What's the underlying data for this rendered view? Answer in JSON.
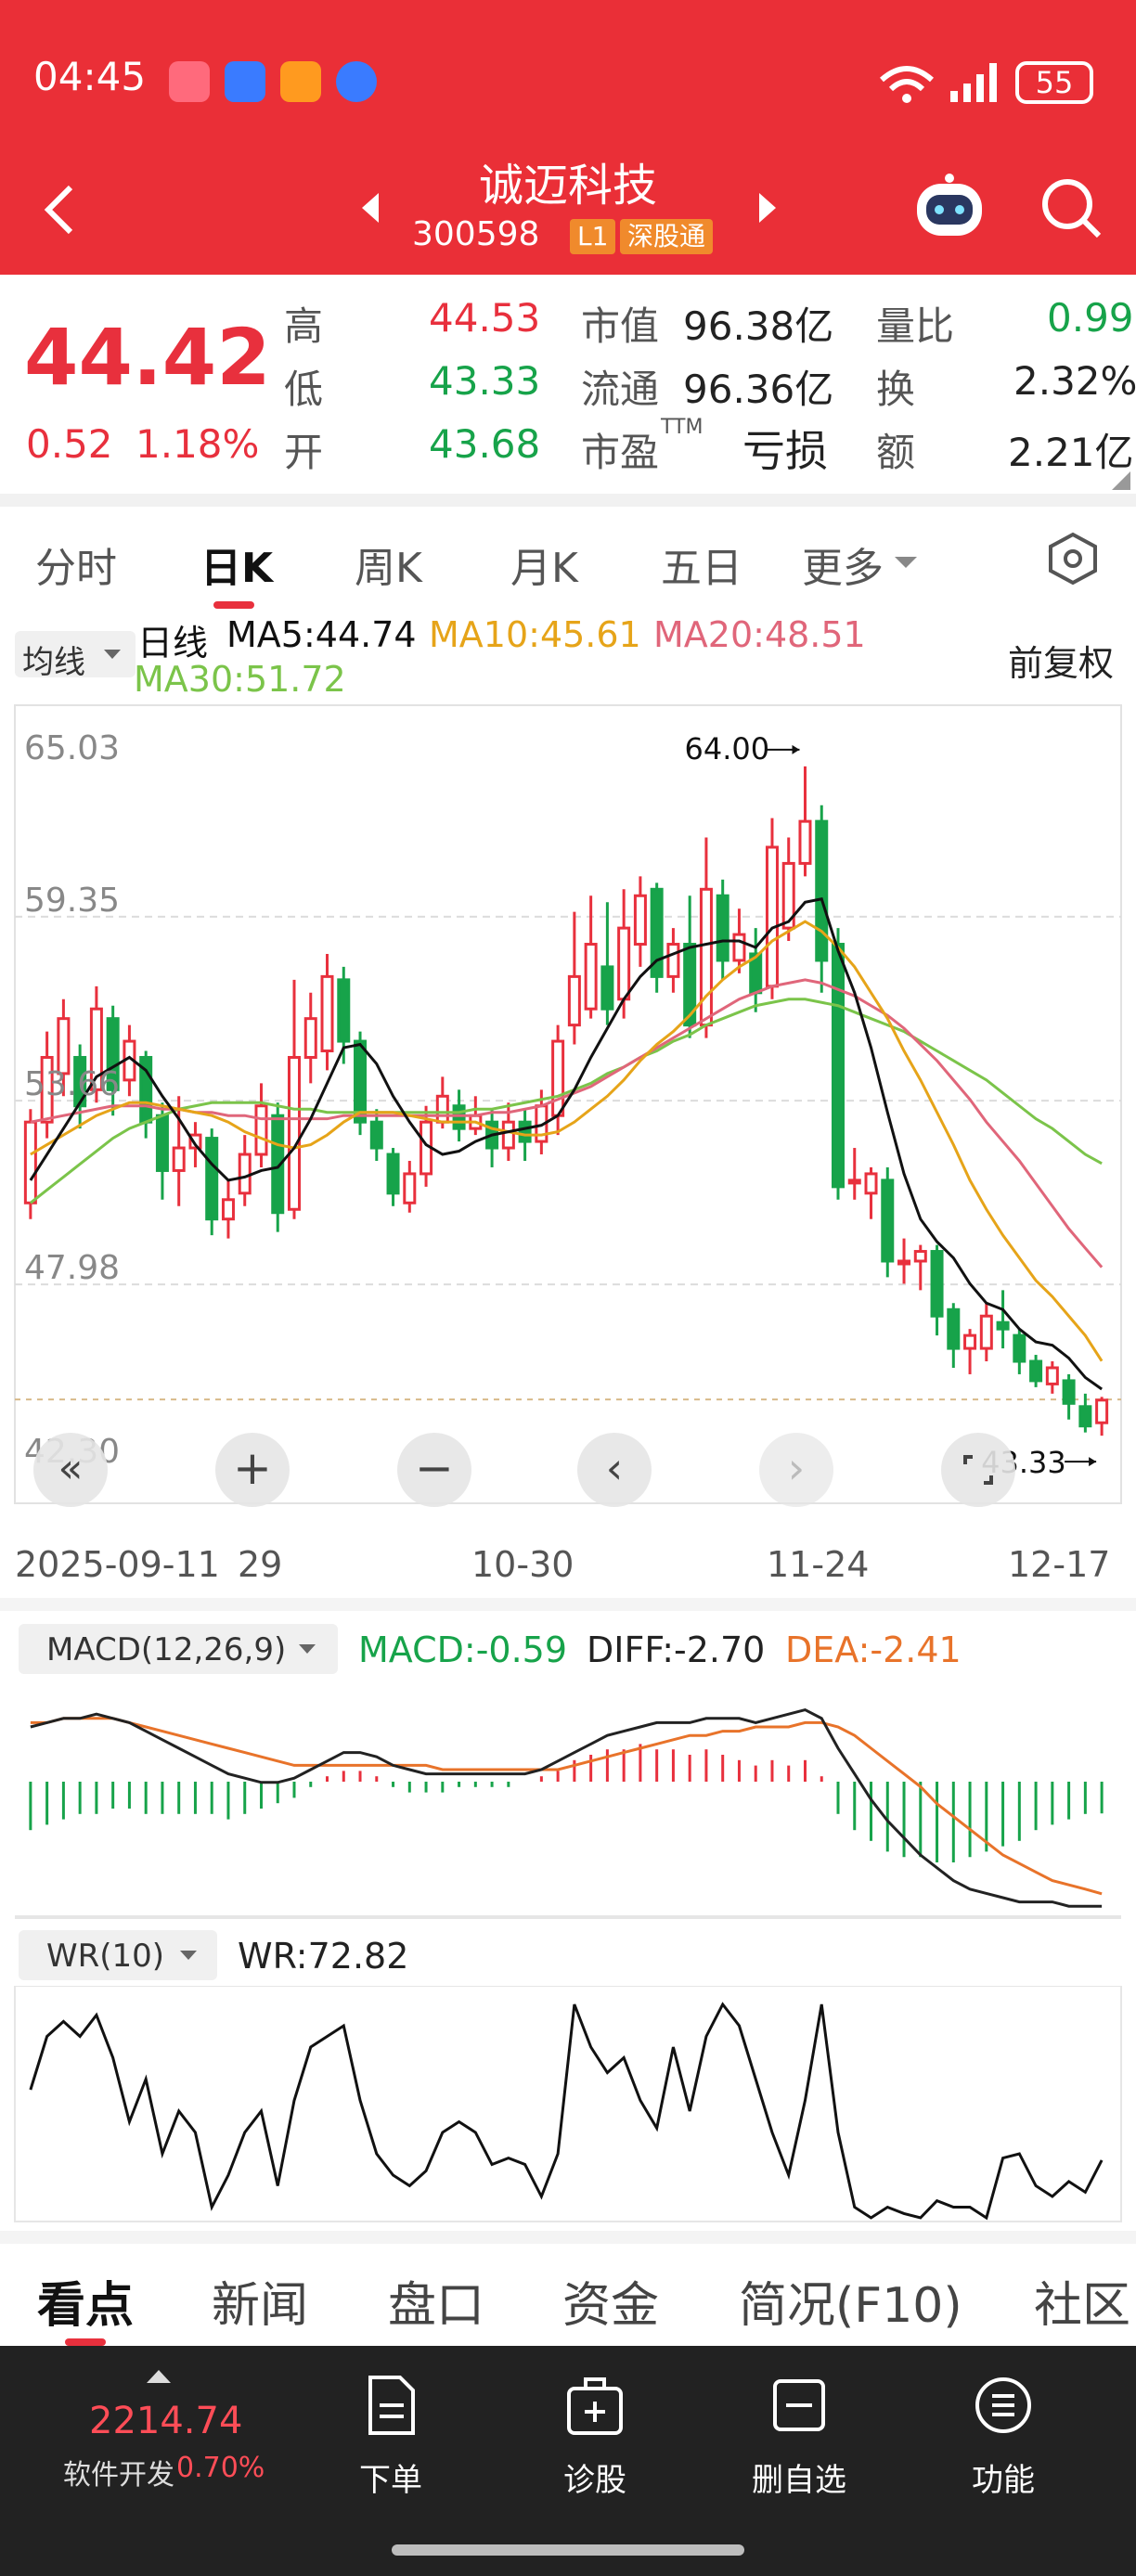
{
  "status_bar": {
    "time": "04:45",
    "battery": "55"
  },
  "header": {
    "stock_name": "诚迈科技",
    "stock_code": "300598",
    "tag_l1": "L1",
    "tag_connect": "深股通"
  },
  "quote": {
    "price": "44.42",
    "change": "0.52",
    "change_pct": "1.18%",
    "high_label": "高",
    "high": "44.53",
    "low_label": "低",
    "low": "43.33",
    "open_label": "开",
    "open": "43.68",
    "mktcap_label": "市值",
    "mktcap": "96.38亿",
    "float_label": "流通",
    "float": "96.36亿",
    "pe_label": "市盈",
    "pe_sup": "TTM",
    "pe": "亏损",
    "vol_ratio_label": "量比",
    "vol_ratio": "0.99",
    "turnover_label": "换",
    "turnover": "2.32%",
    "amount_label": "额",
    "amount": "2.21亿"
  },
  "tabs": [
    "分时",
    "日K",
    "周K",
    "月K",
    "五日",
    "更多"
  ],
  "legend": {
    "selector": "均线",
    "period": "日线",
    "ma5": "MA5:44.74",
    "ma10": "MA10:45.61",
    "ma20": "MA20:48.51",
    "ma30": "MA30:51.72",
    "adjust": "前复权"
  },
  "colors": {
    "up": "#e8303d",
    "down": "#17a34a",
    "ma5": "#111111",
    "ma10": "#e6a419",
    "ma20": "#e0667a",
    "ma30": "#7bc44a"
  },
  "chart_data": {
    "type": "candlestick",
    "y_ticks": [
      "65.03",
      "59.35",
      "53.66",
      "47.98",
      "42.30"
    ],
    "ylim": [
      42.3,
      65.03
    ],
    "x_ticks": [
      "2025-09-11",
      "29",
      "10-30",
      "11-24",
      "12-17"
    ],
    "max_label": "64.00",
    "min_label": "43.33",
    "candles": [
      [
        50.5,
        53.0,
        50.0,
        53.4
      ],
      [
        53.0,
        55.0,
        52.5,
        55.8
      ],
      [
        54.5,
        56.2,
        53.8,
        56.8
      ],
      [
        55.0,
        53.5,
        52.8,
        55.4
      ],
      [
        54.0,
        56.5,
        53.6,
        57.2
      ],
      [
        56.2,
        54.0,
        53.2,
        56.6
      ],
      [
        54.3,
        55.5,
        53.8,
        56.0
      ],
      [
        55.0,
        53.0,
        52.5,
        55.2
      ],
      [
        53.2,
        51.5,
        50.6,
        53.6
      ],
      [
        51.5,
        52.2,
        50.4,
        53.8
      ],
      [
        52.2,
        52.6,
        51.6,
        53.0
      ],
      [
        52.5,
        50.0,
        49.5,
        52.8
      ],
      [
        50.0,
        50.6,
        49.4,
        51.2
      ],
      [
        50.8,
        52.0,
        50.4,
        52.6
      ],
      [
        52.0,
        53.5,
        51.6,
        54.2
      ],
      [
        53.2,
        50.2,
        49.6,
        53.6
      ],
      [
        50.3,
        55.0,
        50.0,
        57.4
      ],
      [
        55.0,
        56.2,
        54.2,
        57.0
      ],
      [
        55.2,
        57.5,
        54.6,
        58.2
      ],
      [
        57.4,
        55.5,
        54.8,
        57.8
      ],
      [
        55.5,
        53.0,
        52.6,
        55.8
      ],
      [
        53.0,
        52.2,
        51.8,
        53.4
      ],
      [
        52.0,
        50.8,
        50.4,
        52.2
      ],
      [
        50.5,
        51.4,
        50.2,
        51.8
      ],
      [
        51.4,
        53.0,
        51.0,
        53.5
      ],
      [
        53.0,
        53.8,
        52.8,
        54.4
      ],
      [
        53.5,
        52.8,
        52.4,
        54.0
      ],
      [
        52.8,
        53.2,
        52.6,
        53.8
      ],
      [
        53.0,
        52.2,
        51.6,
        53.4
      ],
      [
        52.2,
        53.0,
        51.8,
        53.6
      ],
      [
        53.0,
        52.4,
        51.8,
        53.4
      ],
      [
        52.4,
        53.5,
        52.0,
        54.0
      ],
      [
        53.2,
        55.5,
        52.6,
        56.0
      ],
      [
        56.0,
        57.5,
        55.4,
        59.5
      ],
      [
        56.5,
        58.5,
        56.2,
        60.0
      ],
      [
        57.8,
        56.5,
        56.0,
        59.8
      ],
      [
        56.8,
        59.0,
        56.2,
        60.2
      ],
      [
        58.5,
        60.0,
        57.8,
        60.6
      ],
      [
        60.2,
        57.5,
        57.0,
        60.4
      ],
      [
        57.5,
        58.5,
        57.0,
        59.0
      ],
      [
        58.5,
        56.0,
        55.6,
        60.0
      ],
      [
        56.0,
        60.2,
        55.6,
        61.8
      ],
      [
        60.0,
        58.0,
        57.4,
        60.5
      ],
      [
        58.0,
        58.8,
        57.6,
        59.6
      ],
      [
        58.2,
        57.0,
        56.4,
        59.0
      ],
      [
        57.2,
        61.5,
        56.8,
        62.4
      ],
      [
        59.0,
        61.0,
        58.6,
        61.8
      ],
      [
        61.0,
        62.3,
        60.6,
        64.0
      ],
      [
        62.3,
        58.0,
        57.0,
        62.8
      ],
      [
        58.5,
        51.0,
        50.6,
        59.0
      ],
      [
        51.2,
        51.2,
        50.6,
        52.2
      ],
      [
        50.8,
        51.4,
        50.0,
        51.6
      ],
      [
        51.2,
        48.7,
        48.2,
        51.6
      ],
      [
        48.7,
        48.7,
        48.0,
        49.4
      ],
      [
        48.7,
        49.0,
        47.8,
        49.2
      ],
      [
        49.0,
        47.0,
        46.4,
        49.2
      ],
      [
        47.2,
        46.0,
        45.4,
        47.4
      ],
      [
        46.0,
        46.4,
        45.2,
        46.6
      ],
      [
        46.0,
        47.0,
        45.6,
        47.4
      ],
      [
        46.8,
        46.6,
        46.0,
        47.8
      ],
      [
        46.4,
        45.6,
        45.2,
        46.6
      ],
      [
        45.6,
        45.0,
        44.8,
        45.8
      ],
      [
        44.9,
        45.4,
        44.6,
        45.6
      ],
      [
        45.0,
        44.3,
        43.8,
        45.2
      ],
      [
        44.2,
        43.6,
        43.4,
        44.6
      ],
      [
        43.7,
        44.4,
        43.3,
        44.5
      ]
    ],
    "ma5": [
      51.2,
      52.0,
      52.8,
      53.6,
      54.4,
      54.7,
      55.0,
      54.6,
      53.8,
      53.1,
      52.3,
      51.7,
      51.2,
      51.3,
      51.5,
      51.6,
      52.2,
      53.1,
      54.2,
      55.3,
      55.4,
      54.8,
      53.8,
      53.0,
      52.3,
      52.0,
      52.1,
      52.4,
      52.6,
      52.7,
      52.8,
      52.9,
      53.2,
      54.0,
      55.0,
      55.9,
      56.8,
      57.5,
      58.0,
      58.2,
      58.4,
      58.5,
      58.6,
      58.6,
      58.4,
      59.0,
      59.2,
      59.8,
      59.9,
      58.3,
      57.0,
      55.3,
      53.3,
      51.4,
      50.0,
      49.3,
      48.8,
      48.0,
      47.4,
      47.2,
      46.6,
      46.2,
      46.1,
      45.7,
      45.1,
      44.74
    ],
    "ma10": [
      52.0,
      52.3,
      52.6,
      52.9,
      53.2,
      53.4,
      53.6,
      53.6,
      53.5,
      53.4,
      53.3,
      53.2,
      53.0,
      52.7,
      52.5,
      52.3,
      52.2,
      52.3,
      52.6,
      53.0,
      53.3,
      53.3,
      53.3,
      53.2,
      53.1,
      53.0,
      53.0,
      53.0,
      52.8,
      52.7,
      52.6,
      52.6,
      52.7,
      53.0,
      53.4,
      53.8,
      54.3,
      54.9,
      55.4,
      55.8,
      56.3,
      56.9,
      57.4,
      57.8,
      58.1,
      58.6,
      58.9,
      59.2,
      58.9,
      58.4,
      57.8,
      57.0,
      56.2,
      55.2,
      54.3,
      53.3,
      52.3,
      51.2,
      50.3,
      49.5,
      48.8,
      48.1,
      47.6,
      47.0,
      46.4,
      45.61
    ],
    "ma20": [
      53.0,
      53.1,
      53.2,
      53.3,
      53.4,
      53.5,
      53.5,
      53.5,
      53.4,
      53.4,
      53.3,
      53.3,
      53.2,
      53.2,
      53.1,
      53.1,
      53.1,
      53.1,
      53.1,
      53.2,
      53.2,
      53.2,
      53.2,
      53.2,
      53.2,
      53.2,
      53.2,
      53.2,
      53.3,
      53.3,
      53.4,
      53.5,
      53.7,
      53.9,
      54.1,
      54.4,
      54.7,
      55.0,
      55.3,
      55.6,
      55.9,
      56.2,
      56.5,
      56.8,
      57.0,
      57.2,
      57.3,
      57.4,
      57.3,
      57.1,
      56.9,
      56.6,
      56.3,
      55.9,
      55.4,
      54.9,
      54.3,
      53.7,
      53.0,
      52.4,
      51.8,
      51.1,
      50.4,
      49.7,
      49.1,
      48.51
    ],
    "ma30": [
      50.5,
      50.9,
      51.3,
      51.7,
      52.1,
      52.5,
      52.8,
      53.0,
      53.2,
      53.4,
      53.5,
      53.6,
      53.6,
      53.6,
      53.6,
      53.5,
      53.4,
      53.4,
      53.3,
      53.3,
      53.3,
      53.3,
      53.3,
      53.3,
      53.3,
      53.3,
      53.3,
      53.4,
      53.4,
      53.5,
      53.6,
      53.7,
      53.8,
      54.0,
      54.2,
      54.5,
      54.7,
      55.0,
      55.2,
      55.5,
      55.7,
      56.0,
      56.2,
      56.4,
      56.6,
      56.7,
      56.8,
      56.8,
      56.7,
      56.6,
      56.4,
      56.2,
      56.0,
      55.8,
      55.5,
      55.2,
      54.9,
      54.6,
      54.3,
      53.9,
      53.5,
      53.1,
      52.8,
      52.4,
      52.0,
      51.72
    ]
  },
  "macd": {
    "selector": "MACD(12,26,9)",
    "macd": "MACD:-0.59",
    "diff": "DIFF:-2.70",
    "dea": "DEA:-2.41",
    "hist": [
      -0.9,
      -0.8,
      -0.7,
      -0.6,
      -0.6,
      -0.5,
      -0.5,
      -0.6,
      -0.6,
      -0.6,
      -0.6,
      -0.6,
      -0.7,
      -0.6,
      -0.5,
      -0.4,
      -0.3,
      -0.1,
      0.1,
      0.2,
      0.2,
      0.1,
      -0.1,
      -0.2,
      -0.2,
      -0.2,
      -0.1,
      -0.1,
      -0.1,
      -0.1,
      0.0,
      0.1,
      0.2,
      0.4,
      0.5,
      0.6,
      0.6,
      0.7,
      0.6,
      0.6,
      0.5,
      0.6,
      0.5,
      0.4,
      0.3,
      0.4,
      0.3,
      0.4,
      0.1,
      -0.6,
      -0.9,
      -1.1,
      -1.3,
      -1.4,
      -1.4,
      -1.5,
      -1.5,
      -1.4,
      -1.3,
      -1.2,
      -1.1,
      -0.9,
      -0.8,
      -0.7,
      -0.6,
      -0.59
    ],
    "diff_line": [
      1.5,
      1.6,
      1.7,
      1.7,
      1.8,
      1.7,
      1.6,
      1.4,
      1.2,
      1.0,
      0.8,
      0.6,
      0.4,
      0.3,
      0.2,
      0.2,
      0.3,
      0.5,
      0.7,
      0.9,
      0.9,
      0.8,
      0.6,
      0.5,
      0.4,
      0.4,
      0.4,
      0.4,
      0.4,
      0.4,
      0.4,
      0.5,
      0.7,
      0.9,
      1.1,
      1.3,
      1.4,
      1.5,
      1.6,
      1.6,
      1.6,
      1.7,
      1.7,
      1.7,
      1.6,
      1.7,
      1.8,
      1.9,
      1.7,
      1.0,
      0.4,
      -0.2,
      -0.7,
      -1.1,
      -1.5,
      -1.8,
      -2.1,
      -2.3,
      -2.4,
      -2.5,
      -2.6,
      -2.6,
      -2.6,
      -2.7,
      -2.7,
      -2.7
    ],
    "dea_line": [
      1.6,
      1.6,
      1.7,
      1.7,
      1.7,
      1.7,
      1.6,
      1.5,
      1.4,
      1.3,
      1.2,
      1.1,
      1.0,
      0.9,
      0.8,
      0.7,
      0.6,
      0.6,
      0.6,
      0.6,
      0.6,
      0.6,
      0.6,
      0.6,
      0.6,
      0.5,
      0.5,
      0.5,
      0.5,
      0.5,
      0.5,
      0.5,
      0.5,
      0.6,
      0.7,
      0.8,
      0.9,
      1.0,
      1.1,
      1.2,
      1.3,
      1.3,
      1.4,
      1.4,
      1.5,
      1.5,
      1.5,
      1.6,
      1.6,
      1.5,
      1.3,
      1.0,
      0.7,
      0.4,
      0.1,
      -0.3,
      -0.6,
      -0.9,
      -1.2,
      -1.5,
      -1.7,
      -1.9,
      -2.1,
      -2.2,
      -2.3,
      -2.41
    ]
  },
  "wr": {
    "selector": "WR(10)",
    "value": "WR:72.82",
    "values": [
      40,
      15,
      8,
      15,
      5,
      25,
      55,
      35,
      70,
      50,
      60,
      95,
      80,
      60,
      50,
      85,
      45,
      20,
      15,
      10,
      45,
      70,
      80,
      85,
      78,
      60,
      55,
      60,
      75,
      72,
      75,
      90,
      70,
      0,
      20,
      32,
      25,
      45,
      58,
      20,
      50,
      15,
      0,
      10,
      35,
      60,
      80,
      45,
      0,
      60,
      95,
      100,
      95,
      98,
      100,
      92,
      95,
      95,
      100,
      72,
      70,
      85,
      90,
      83,
      88,
      73
    ]
  },
  "news_tabs": [
    "看点",
    "新闻",
    "盘口",
    "资金",
    "简况(F10)",
    "社区"
  ],
  "bottom_bar": {
    "index_value": "2214.74",
    "index_name": "软件开发",
    "index_pct": "0.70%",
    "order": "下单",
    "diagnose": "诊股",
    "remove_watch": "删自选",
    "functions": "功能"
  }
}
